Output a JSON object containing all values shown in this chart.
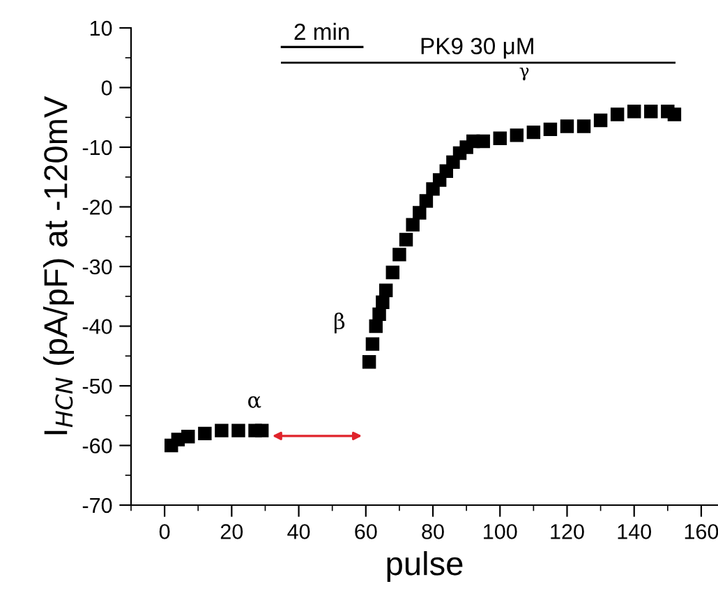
{
  "chart_data": {
    "type": "scatter",
    "xlabel": "pulse",
    "ylabel": "I$_{HCN}$ (pA/pF) at -120mV",
    "x": [
      2,
      4,
      7,
      12,
      17,
      22,
      27,
      29,
      61,
      62,
      63,
      64,
      65,
      66,
      68,
      70,
      72,
      74,
      76,
      78,
      80,
      82,
      84,
      86,
      88,
      90,
      92,
      95,
      100,
      105,
      110,
      115,
      120,
      125,
      130,
      135,
      140,
      145,
      150,
      152
    ],
    "values": [
      -60,
      -59,
      -58.5,
      -58,
      -57.5,
      -57.5,
      -57.5,
      -57.5,
      -46,
      -43,
      -40,
      -38,
      -36,
      -34,
      -31,
      -28,
      -25.5,
      -23,
      -21,
      -19,
      -17,
      -15.5,
      -14,
      -12.5,
      -11,
      -10,
      -9,
      -9,
      -8.5,
      -8,
      -7.5,
      -7,
      -6.5,
      -6.5,
      -5.5,
      -4.5,
      -4,
      -4,
      -4,
      -4.5
    ],
    "color": "#000000",
    "marker": "square",
    "xlim": [
      -10,
      165
    ],
    "xticks": [
      0,
      20,
      40,
      60,
      80,
      100,
      120,
      140,
      160
    ],
    "ylim": [
      -70,
      10
    ],
    "yticks": [
      -70,
      -60,
      -50,
      -40,
      -30,
      -20,
      -10,
      0,
      10
    ],
    "annotations": [
      "PK9 30 μM",
      "2 min",
      "α",
      "β",
      "γ"
    ]
  }
}
